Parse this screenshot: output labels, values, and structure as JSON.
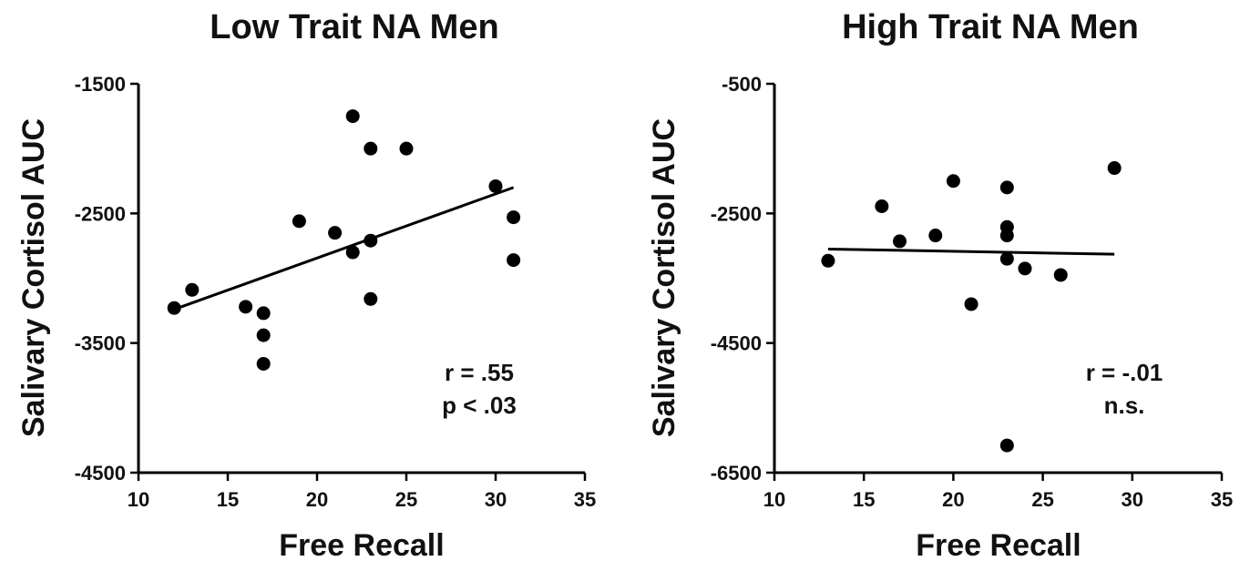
{
  "chart_data": [
    {
      "type": "scatter",
      "title": "Low Trait NA Men",
      "xlabel": "Free Recall",
      "ylabel": "Salivary Cortisol AUC",
      "xlim": [
        10,
        35
      ],
      "ylim": [
        -4500,
        -1500
      ],
      "xticks": [
        10,
        15,
        20,
        25,
        30,
        35
      ],
      "yticks": [
        -4500,
        -3500,
        -2500,
        -1500
      ],
      "grid": false,
      "points": [
        {
          "x": 12,
          "y": -3230
        },
        {
          "x": 13,
          "y": -3090
        },
        {
          "x": 16,
          "y": -3220
        },
        {
          "x": 17,
          "y": -3270
        },
        {
          "x": 17,
          "y": -3440
        },
        {
          "x": 17,
          "y": -3660
        },
        {
          "x": 19,
          "y": -2560
        },
        {
          "x": 21,
          "y": -2650
        },
        {
          "x": 22,
          "y": -1750
        },
        {
          "x": 22,
          "y": -2800
        },
        {
          "x": 23,
          "y": -2000
        },
        {
          "x": 23,
          "y": -2710
        },
        {
          "x": 23,
          "y": -3160
        },
        {
          "x": 25,
          "y": -2000
        },
        {
          "x": 30,
          "y": -2290
        },
        {
          "x": 31,
          "y": -2530
        },
        {
          "x": 31,
          "y": -2860
        }
      ],
      "fit_line": {
        "x": [
          12,
          31
        ],
        "y": [
          -3240,
          -2300
        ]
      },
      "annotations": [
        "r = .55",
        "p < .03"
      ]
    },
    {
      "type": "scatter",
      "title": "High Trait NA Men",
      "xlabel": "Free Recall",
      "ylabel": "Salivary Cortisol AUC",
      "xlim": [
        10,
        35
      ],
      "ylim": [
        -6500,
        -500
      ],
      "xticks": [
        10,
        15,
        20,
        25,
        30,
        35
      ],
      "yticks": [
        -6500,
        -4500,
        -2500,
        -500
      ],
      "grid": false,
      "points": [
        {
          "x": 13,
          "y": -3230
        },
        {
          "x": 16,
          "y": -2390
        },
        {
          "x": 17,
          "y": -2930
        },
        {
          "x": 19,
          "y": -2840
        },
        {
          "x": 20,
          "y": -2000
        },
        {
          "x": 21,
          "y": -3900
        },
        {
          "x": 23,
          "y": -2100
        },
        {
          "x": 23,
          "y": -2710
        },
        {
          "x": 23,
          "y": -2840
        },
        {
          "x": 23,
          "y": -3200
        },
        {
          "x": 23,
          "y": -6080
        },
        {
          "x": 24,
          "y": -3350
        },
        {
          "x": 26,
          "y": -3450
        },
        {
          "x": 29,
          "y": -1800
        }
      ],
      "fit_line": {
        "x": [
          13,
          29
        ],
        "y": [
          -3050,
          -3130
        ]
      },
      "annotations": [
        "r = -.01",
        "n.s."
      ]
    }
  ]
}
